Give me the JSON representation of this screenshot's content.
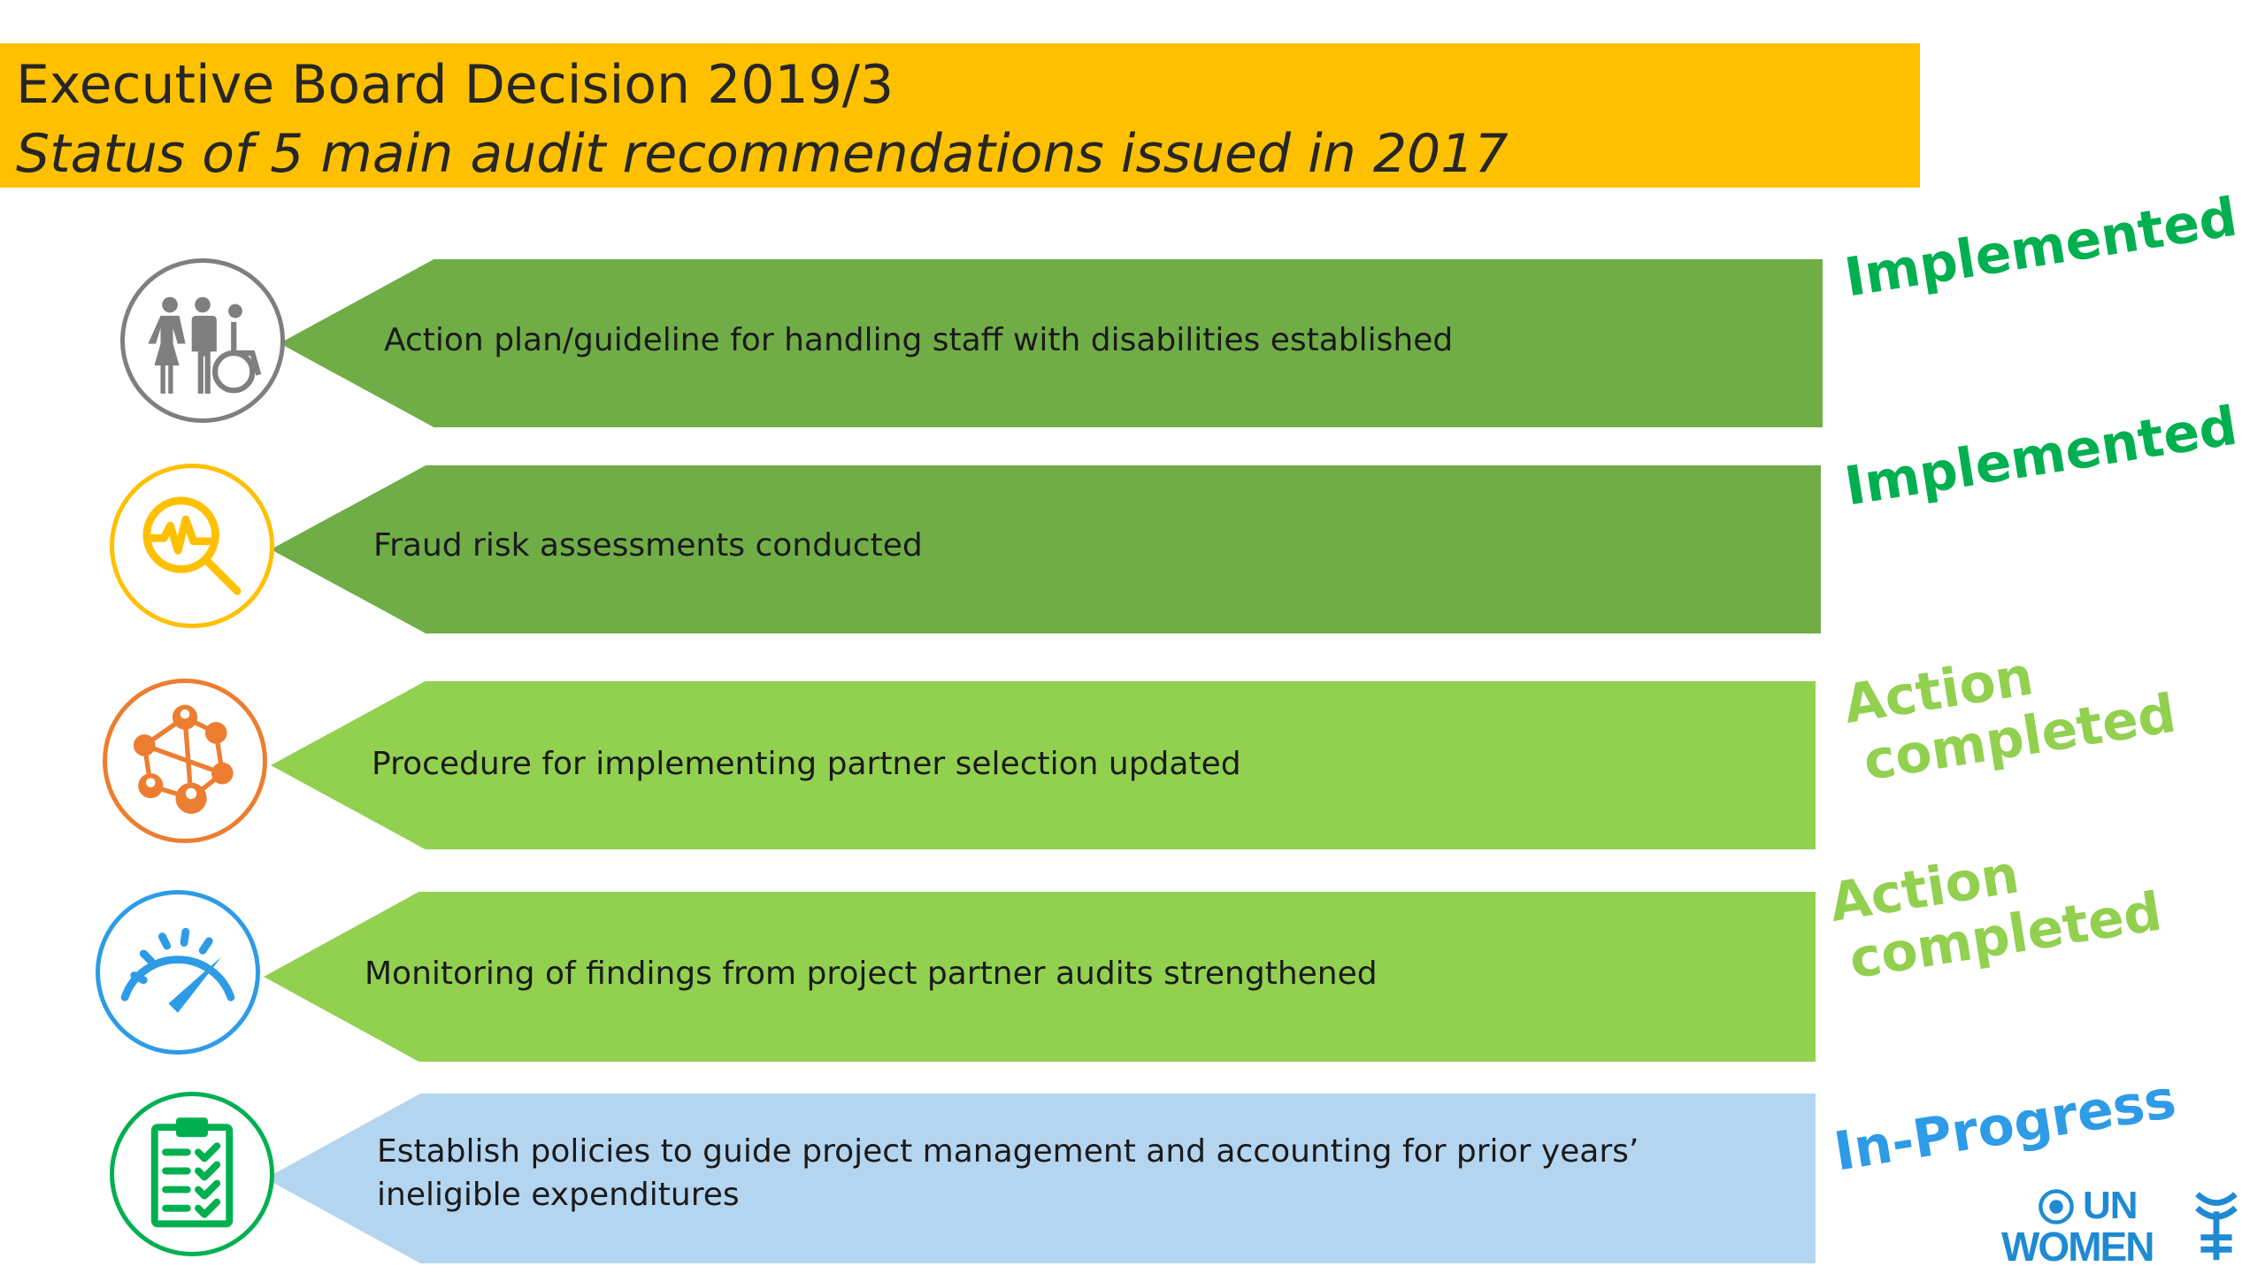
{
  "header": {
    "title": "Executive Board Decision 2019/3",
    "subtitle": "Status of 5 main audit recommendations issued in 2017"
  },
  "colors": {
    "header_bg": "#ffc000",
    "dark_green": "#70ad47",
    "light_green": "#92d050",
    "light_blue": "#b4d5f0",
    "status_implemented": "#00b050",
    "status_action_completed": "#92d050",
    "status_in_progress": "#2e9be6"
  },
  "rows": [
    {
      "text": "Action plan/guideline for handling staff with disabilities established",
      "icon": "people-disability-icon",
      "status_line1": "Implemented",
      "status_line2": ""
    },
    {
      "text": "Fraud risk assessments conducted",
      "icon": "magnifier-pulse-icon",
      "status_line1": "Implemented",
      "status_line2": ""
    },
    {
      "text": "Procedure for implementing partner selection updated",
      "icon": "network-people-icon",
      "status_line1": "Action",
      "status_line2": "completed"
    },
    {
      "text": "Monitoring of findings from project partner audits strengthened",
      "icon": "speedometer-icon",
      "status_line1": "Action",
      "status_line2": "completed"
    },
    {
      "text": "Establish policies to guide project management and accounting for prior years’ ineligible expenditures",
      "icon": "checklist-icon",
      "status_line1": "In-Progress",
      "status_line2": ""
    }
  ],
  "logo": {
    "line1": "UN",
    "line2": "WOMEN"
  }
}
